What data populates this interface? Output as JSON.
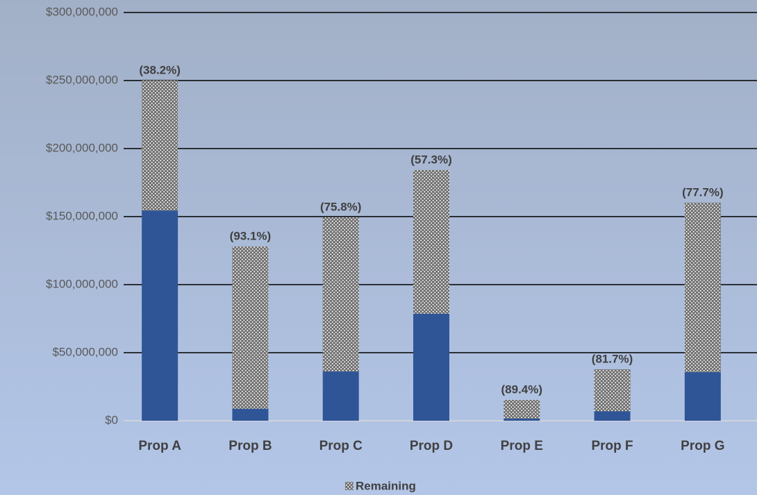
{
  "chart_data": {
    "type": "stacked_bar",
    "categories": [
      "Prop A",
      "Prop B",
      "Prop C",
      "Prop D",
      "Prop E",
      "Prop F",
      "Prop G"
    ],
    "series": [
      {
        "color": "#2f5597",
        "values": [
          154500000,
          8800000,
          36200000,
          78700000,
          1600000,
          6900000,
          35700000
        ]
      },
      {
        "name": "Remaining",
        "color": "#7f7f7f",
        "values": [
          95500000,
          119200000,
          113300000,
          105500000,
          13700000,
          30900000,
          124500000
        ]
      }
    ],
    "top_labels": [
      "(38.2%)",
      "(93.1%)",
      "(75.8%)",
      "(57.3%)",
      "(89.4%)",
      "(81.7%)",
      "(77.7%)"
    ],
    "ylim": [
      0,
      300000000
    ],
    "yticks": [
      {
        "value": 0,
        "label": "$0"
      },
      {
        "value": 50000000,
        "label": "$50,000,000"
      },
      {
        "value": 100000000,
        "label": "$100,000,000"
      },
      {
        "value": 150000000,
        "label": "$150,000,000"
      },
      {
        "value": 200000000,
        "label": "$200,000,000"
      },
      {
        "value": 250000000,
        "label": "$250,000,000"
      },
      {
        "value": 300000000,
        "label": "$300,000,000"
      }
    ],
    "grid": true,
    "legend": "bottom"
  }
}
